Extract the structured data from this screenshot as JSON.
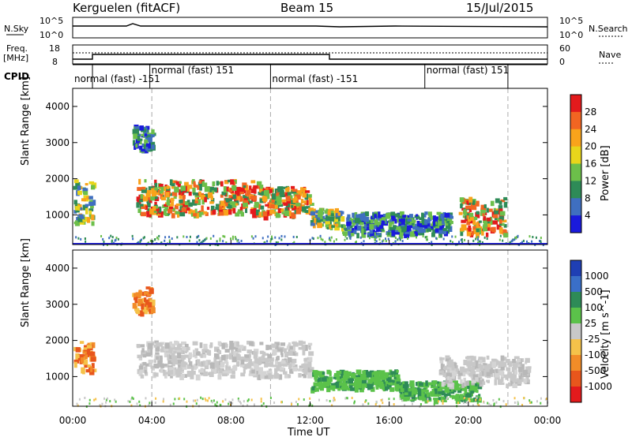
{
  "header": {
    "station": "Kerguelen (fitACF)",
    "beam": "Beam 15",
    "date": "15/Jul/2015"
  },
  "noise_panel": {
    "left_label": "N.Sky",
    "right_label": "N.Search",
    "left_ticks": [
      "10^5",
      "10^0"
    ],
    "right_ticks": [
      "10^5",
      "10^0"
    ]
  },
  "freq_panel": {
    "left_label_1": "Freq.",
    "left_label_2": "[MHz]",
    "right_label": "Nave",
    "left_ticks": [
      "18",
      "8"
    ],
    "right_ticks": [
      "60",
      "0"
    ]
  },
  "cpid": {
    "label": "CPID",
    "segments": [
      {
        "text": "normal (fast) -151",
        "start_h": 1.0
      },
      {
        "text": "normal (fast) 151",
        "start_h": 3.9
      },
      {
        "text": "normal (fast) -151",
        "start_h": 10.0
      },
      {
        "text": "normal (fast) 151",
        "start_h": 17.8
      }
    ],
    "boundaries_h": [
      1.0,
      3.9,
      10.0,
      17.8,
      22.0
    ]
  },
  "power_panel": {
    "ylabel": "Slant Range [km]",
    "colorbar_label": "Power [dB]",
    "colorbar_ticks": [
      "28",
      "24",
      "20",
      "16",
      "12",
      "8",
      "4"
    ],
    "colorbar_colors": [
      "#e31a1c",
      "#f26522",
      "#f9a31b",
      "#e8d51b",
      "#6cbf4a",
      "#2e8b57",
      "#3f6fc0",
      "#1a1adc"
    ]
  },
  "velocity_panel": {
    "ylabel": "Slant Range [km]",
    "colorbar_label": "Velocity [m s^-1]",
    "colorbar_ticks": [
      "1000",
      "500",
      "100",
      "25",
      "-25",
      "-100",
      "-500",
      "-1000"
    ],
    "colorbar_colors": [
      "#1f3fb4",
      "#3a6fc8",
      "#2e8b57",
      "#5bc24a",
      "#c8c8c8",
      "#f5c24a",
      "#f28c28",
      "#e8561c",
      "#e31a1c"
    ]
  },
  "x_axis": {
    "label": "Time UT",
    "ticks": [
      "00:00",
      "04:00",
      "08:00",
      "12:00",
      "16:00",
      "20:00",
      "00:00"
    ]
  },
  "chart_data": {
    "type": "heatmap",
    "x_range_h": [
      0,
      24
    ],
    "y_range_km": [
      180,
      4500
    ],
    "y_ticks": [
      "1000",
      "2000",
      "3000",
      "4000"
    ],
    "power_regions": [
      {
        "t0": 3.2,
        "t1": 9.5,
        "r0": 1050,
        "r1": 2000,
        "level": "high"
      },
      {
        "t0": 9.5,
        "t1": 12.0,
        "r0": 1000,
        "r1": 1800,
        "level": "high"
      },
      {
        "t0": 12.0,
        "t1": 13.6,
        "r0": 700,
        "r1": 1200,
        "level": "mid"
      },
      {
        "t0": 13.6,
        "t1": 19.0,
        "r0": 500,
        "r1": 1100,
        "level": "low"
      },
      {
        "t0": 19.5,
        "t1": 21.8,
        "r0": 500,
        "r1": 1500,
        "level": "high"
      },
      {
        "t0": 0.0,
        "t1": 1.0,
        "r0": 800,
        "r1": 2000,
        "level": "mid"
      },
      {
        "t0": 3.0,
        "t1": 4.0,
        "r0": 2800,
        "r1": 3500,
        "level": "low"
      }
    ],
    "velocity_regions": [
      {
        "t0": 3.2,
        "t1": 12.0,
        "r0": 1050,
        "r1": 2000,
        "level": "zero"
      },
      {
        "t0": 12.0,
        "t1": 16.5,
        "r0": 700,
        "r1": 1200,
        "level": "pos"
      },
      {
        "t0": 16.5,
        "t1": 20.5,
        "r0": 400,
        "r1": 900,
        "level": "pos"
      },
      {
        "t0": 18.5,
        "t1": 23.0,
        "r0": 800,
        "r1": 1600,
        "level": "zero"
      },
      {
        "t0": 0.0,
        "t1": 1.0,
        "r0": 1200,
        "r1": 2000,
        "level": "neg"
      },
      {
        "t0": 3.0,
        "t1": 4.0,
        "r0": 2800,
        "r1": 3500,
        "level": "neg"
      }
    ]
  }
}
